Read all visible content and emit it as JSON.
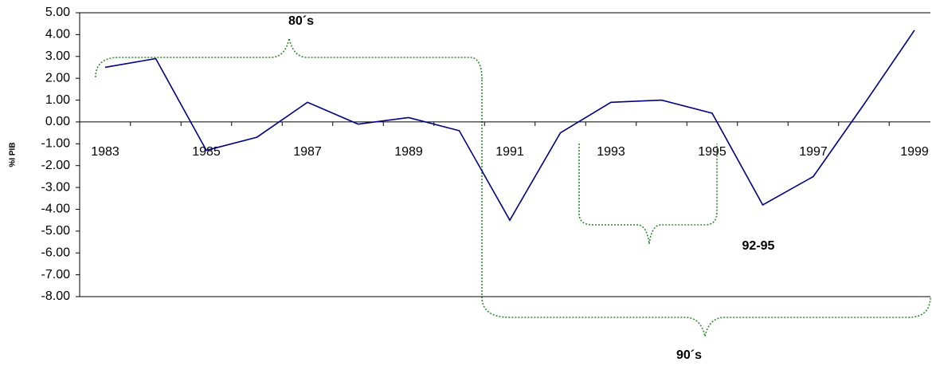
{
  "chart_data": {
    "type": "line",
    "y_label": "%I PIB",
    "annotations": [
      "80´s",
      "90´s",
      "92-95"
    ],
    "categories": [
      "1983",
      null,
      "1985",
      null,
      "1987",
      null,
      "1989",
      null,
      "1991",
      null,
      "1993",
      null,
      "1995",
      null,
      "1997",
      null,
      "1999"
    ],
    "series": [
      {
        "color": "#000080",
        "values": [
          2.5,
          2.9,
          -1.3,
          -0.7,
          0.9,
          -0.1,
          0.2,
          -0.4,
          -4.5,
          -0.5,
          0.9,
          1.0,
          0.4,
          -3.8,
          -2.5,
          0.8,
          4.2
        ]
      }
    ],
    "ylim": [
      -8,
      5
    ],
    "yticks": [
      {
        "value": -8,
        "label": "-8.00"
      },
      {
        "value": -7,
        "label": "-7.00"
      },
      {
        "value": -6,
        "label": "-6.00"
      },
      {
        "value": -5,
        "label": "-5.00"
      },
      {
        "value": -4,
        "label": "-4.00"
      },
      {
        "value": -3,
        "label": "-3.00"
      },
      {
        "value": -2,
        "label": "-2.00"
      },
      {
        "value": -1,
        "label": "-1.00"
      },
      {
        "value": 0,
        "label": "0.00"
      },
      {
        "value": 1,
        "label": "1.00"
      },
      {
        "value": 2,
        "label": "2.00"
      },
      {
        "value": 3,
        "label": "3.00"
      },
      {
        "value": 4,
        "label": "4.00"
      },
      {
        "value": 5,
        "label": "5.00"
      }
    ]
  }
}
